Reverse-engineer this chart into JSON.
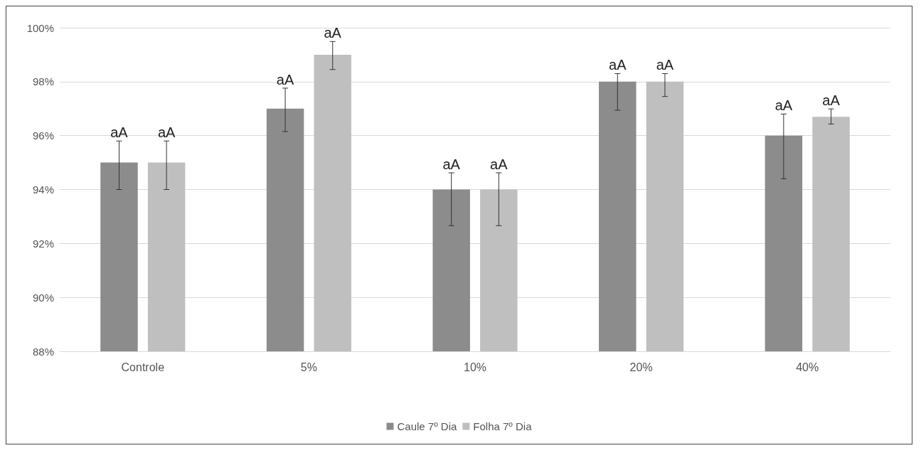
{
  "chart_data": {
    "type": "bar",
    "categories": [
      "Controle",
      "5%",
      "10%",
      "20%",
      "40%"
    ],
    "series": [
      {
        "name": "Caule 7º Dia",
        "color": "#8c8c8c",
        "values": [
          95,
          97,
          94,
          98,
          96
        ],
        "errors": [
          [
            94.0,
            95.8
          ],
          [
            96.15,
            97.76
          ],
          [
            92.66,
            94.62
          ],
          [
            96.94,
            98.3
          ],
          [
            94.4,
            96.8
          ]
        ],
        "value_labels": [
          "aA",
          "aA",
          "aA",
          "aA",
          "aA"
        ]
      },
      {
        "name": "Folha 7º Dia",
        "color": "#bfbfbf",
        "values": [
          95,
          99,
          94,
          98,
          96.7
        ],
        "errors": [
          [
            94.0,
            95.8
          ],
          [
            98.45,
            99.49
          ],
          [
            92.66,
            94.62
          ],
          [
            97.45,
            98.3
          ],
          [
            96.43,
            96.99
          ]
        ],
        "value_labels": [
          "aA",
          "aA",
          "aA",
          "aA",
          "aA"
        ]
      }
    ],
    "ylim": [
      88,
      100
    ],
    "yticks": [
      {
        "value": 88,
        "label": "88%"
      },
      {
        "value": 90,
        "label": "90%"
      },
      {
        "value": 92,
        "label": "92%"
      },
      {
        "value": 94,
        "label": "94%"
      },
      {
        "value": 96,
        "label": "96%"
      },
      {
        "value": 98,
        "label": "98%"
      },
      {
        "value": 100,
        "label": "100%"
      }
    ],
    "grid": "y",
    "legend": "bottom"
  }
}
